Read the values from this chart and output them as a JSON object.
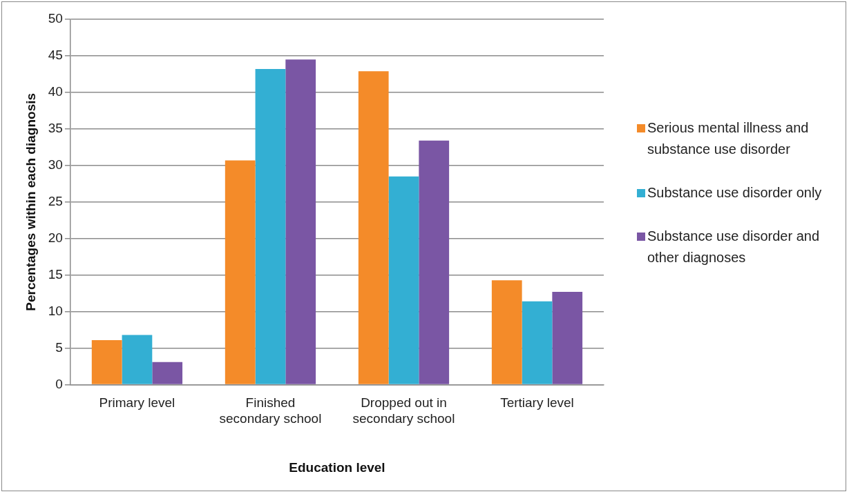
{
  "chart_data": {
    "type": "bar",
    "xlabel": "Education level",
    "ylabel": "Percentages within each diagnosis",
    "categories": [
      "Primary level",
      "Finished secondary school",
      "Dropped out in secondary school",
      "Tertiary level"
    ],
    "series": [
      {
        "name": "Serious mental illness and substance use disorder",
        "color": "#f48b29",
        "values": [
          6.1,
          30.7,
          42.9,
          14.3
        ]
      },
      {
        "name": "Substance use disorder only",
        "color": "#33afd3",
        "values": [
          6.8,
          43.2,
          28.5,
          11.4
        ]
      },
      {
        "name": "Substance use disorder and other diagnoses",
        "color": "#7a56a4",
        "values": [
          3.1,
          44.5,
          33.4,
          12.7
        ]
      }
    ],
    "ylim": [
      0,
      50
    ],
    "yticks": [
      0,
      5,
      10,
      15,
      20,
      25,
      30,
      35,
      40,
      45,
      50
    ],
    "grid": "y",
    "legend": "right"
  }
}
